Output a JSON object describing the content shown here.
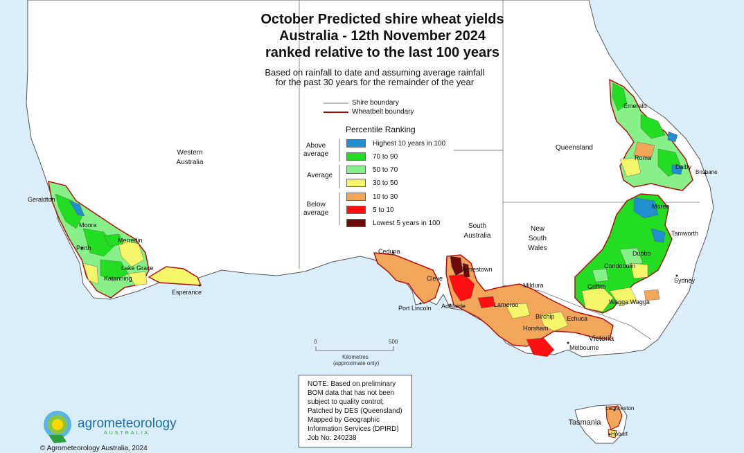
{
  "title": {
    "line1": "October Predicted shire wheat yields",
    "line2": "Australia - 12th November 2024",
    "line3": "ranked relative to the last 100 years"
  },
  "subtitle": {
    "line1": "Based on rainfall to date and assuming average rainfall",
    "line2": "for the past 30 years for the remainder of the year"
  },
  "boundary_legend": {
    "shire": "Shire boundary",
    "wheatbelt": "Wheatbelt boundary"
  },
  "legend": {
    "title": "Percentile Ranking",
    "groups": {
      "above": [
        "Above",
        "average"
      ],
      "average": "Average",
      "below": [
        "Below",
        "average"
      ]
    },
    "items": [
      {
        "label": "Highest 10 years in 100",
        "color": "#1f8fd0"
      },
      {
        "label": "70 to 90",
        "color": "#22dd22"
      },
      {
        "label": "50 to 70",
        "color": "#88f088"
      },
      {
        "label": "30 to 50",
        "color": "#f5f56a"
      },
      {
        "label": "10 to 30",
        "color": "#f2a65a"
      },
      {
        "label": "5 to 10",
        "color": "#ff1010"
      },
      {
        "label": "Lowest 5 years in 100",
        "color": "#6e0a0a"
      }
    ]
  },
  "states": {
    "wa": [
      "Western",
      "Australia"
    ],
    "qld": "Queensland",
    "sa": [
      "South",
      "Australia"
    ],
    "nsw": [
      "New",
      "South",
      "Wales"
    ],
    "vic": "Victoria",
    "tas": "Tasmania"
  },
  "places": {
    "geraldton": "Geraldton",
    "moora": "Moora",
    "merredin": "Merredin",
    "perth": "Perth",
    "lake_grace": "Lake Grace",
    "katanning": "Katanning",
    "esperance": "Esperance",
    "ceduna": "Ceduna",
    "cleve": "Cleve",
    "port_lincoln": "Port Lincoln",
    "jamestown": "Jamestown",
    "adelaide": "Adelaide",
    "lameroo": "Lameroo",
    "mildura": "Mildura",
    "birchip": "Birchip",
    "horsham": "Horsham",
    "echuca": "Echuca",
    "melbourne": "Melbourne",
    "griffith": "Griffith",
    "wagga_wagga": "Wagga Wagga",
    "condobolin": "Condobolin",
    "dubbo": "Dubbo",
    "sydney": "Sydney",
    "tamworth": "Tamworth",
    "moree": "Moree",
    "roma": "Roma",
    "dalby": "Dalby",
    "brisbane": "Brisbane",
    "emerald": "Emerald",
    "launceston": "Launceston",
    "hobart": "Hobart"
  },
  "scale": {
    "zero": "0",
    "max": "500",
    "unit": "Kilometres",
    "note": "(approximate only)"
  },
  "note": [
    "NOTE: Based on preliminary",
    "BOM data that has not been",
    "subject to quality control;",
    "Patched by DES (Queensland)",
    "Mapped by Geographic",
    "Information Services (DPIRD)",
    "Job No: 240238"
  ],
  "logo": {
    "name": "agrometeorology",
    "sub": "AUSTRALIA"
  },
  "copyright": "© Agrometeorology Australia, 2024"
}
